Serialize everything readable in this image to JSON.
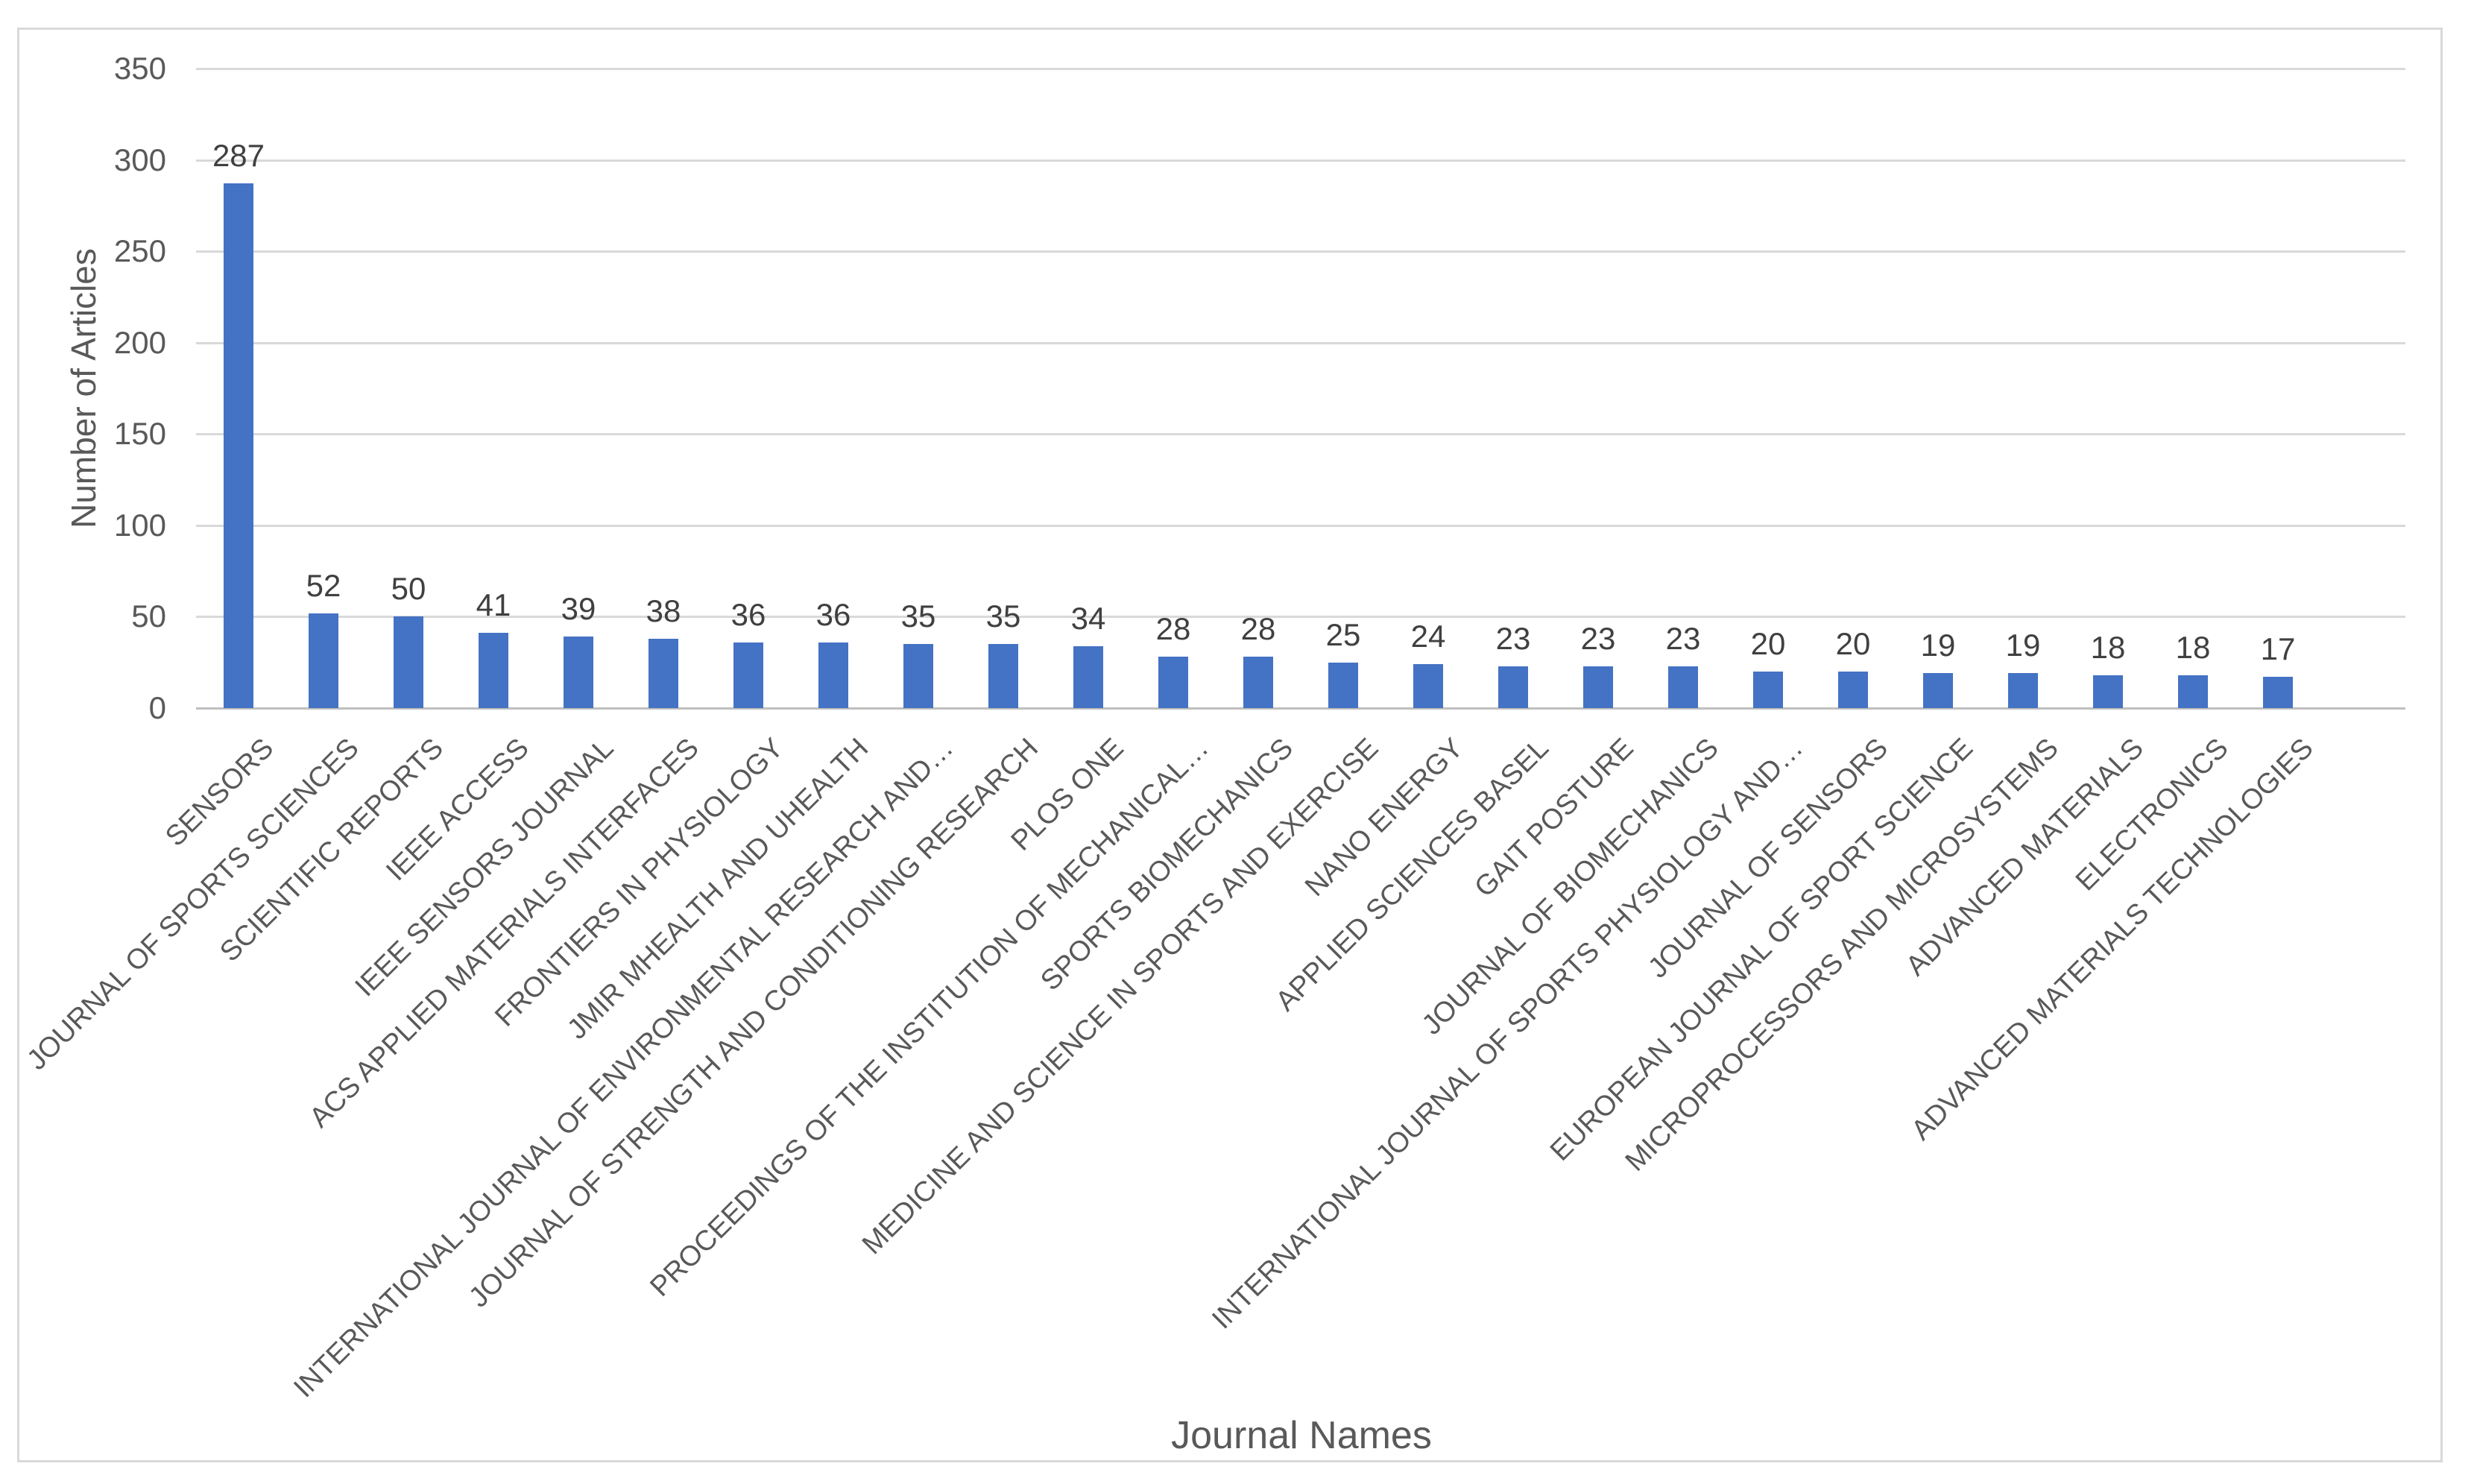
{
  "figure": {
    "background": "#FFFFFF",
    "border_color": "#D9D9D9"
  },
  "chart_data": {
    "type": "bar",
    "title": "",
    "xlabel": "Journal Names",
    "ylabel": "Number of Articles",
    "ylim": [
      0,
      350
    ],
    "yticks": [
      0,
      50,
      100,
      150,
      200,
      250,
      300,
      350
    ],
    "grid": true,
    "legend": false,
    "bar_color": "#4472C4",
    "gridline_color": "#D9D9D9",
    "axis_line_color": "#BFBFBF",
    "tick_label_color": "#595959",
    "data_label_color": "#404040",
    "categories": [
      "SENSORS",
      "JOURNAL OF SPORTS SCIENCES",
      "SCIENTIFIC REPORTS",
      "IEEE ACCESS",
      "IEEE SENSORS JOURNAL",
      "ACS APPLIED MATERIALS INTERFACES",
      "FRONTIERS IN PHYSIOLOGY",
      "JMIR MHEALTH AND UHEALTH",
      "INTERNATIONAL JOURNAL OF ENVIRONMENTAL RESEARCH AND…",
      "JOURNAL OF STRENGTH AND CONDITIONING RESEARCH",
      "PLOS ONE",
      "PROCEEDINGS OF THE INSTITUTION OF MECHANICAL…",
      "SPORTS BIOMECHANICS",
      "MEDICINE AND SCIENCE IN SPORTS AND EXERCISE",
      "NANO ENERGY",
      "APPLIED SCIENCES BASEL",
      "GAIT POSTURE",
      "JOURNAL OF BIOMECHANICS",
      "INTERNATIONAL JOURNAL OF SPORTS PHYSIOLOGY AND…",
      "JOURNAL OF SENSORS",
      "EUROPEAN JOURNAL OF SPORT SCIENCE",
      "MICROPROCESSORS AND MICROSYSTEMS",
      "ADVANCED MATERIALS",
      "ELECTRONICS",
      "ADVANCED MATERIALS TECHNOLOGIES"
    ],
    "values": [
      287,
      52,
      50,
      41,
      39,
      38,
      36,
      36,
      35,
      35,
      34,
      28,
      28,
      25,
      24,
      23,
      23,
      23,
      20,
      20,
      19,
      19,
      18,
      18,
      17
    ]
  }
}
